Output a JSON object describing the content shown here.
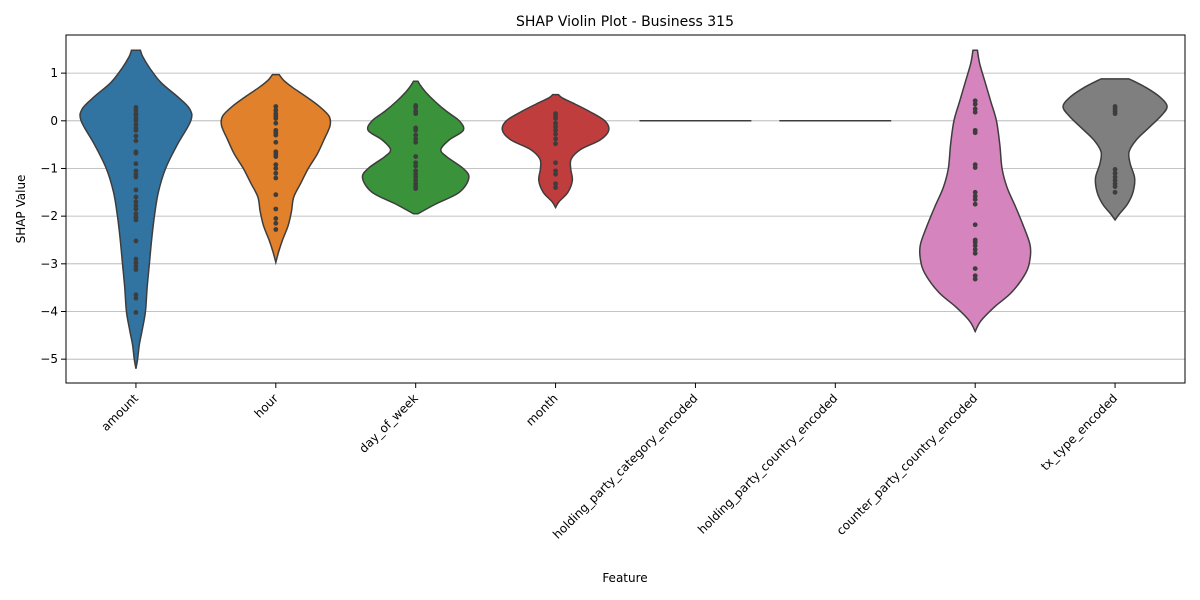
{
  "chart_data": {
    "type": "violin",
    "title": "SHAP Violin Plot - Business 315",
    "xlabel": "Feature",
    "ylabel": "SHAP Value",
    "ylim": [
      -5.5,
      1.8
    ],
    "yticks": [
      1,
      0,
      -1,
      -2,
      -3,
      -4,
      -5
    ],
    "ytick_labels": [
      "1",
      "0",
      "−1",
      "−2",
      "−3",
      "−4",
      "−5"
    ],
    "grid": "y",
    "categories": [
      "amount",
      "hour",
      "day_of_week",
      "month",
      "holding_party_category_encoded",
      "holding_party_country_encoded",
      "counter_party_country_encoded",
      "tx_type_encoded"
    ],
    "series": [
      {
        "category": "amount",
        "color": "#3274a1",
        "min": -5.2,
        "max": 1.48,
        "profile": [
          [
            -5.2,
            0.0
          ],
          [
            -5.0,
            0.03
          ],
          [
            -4.7,
            0.06
          ],
          [
            -4.4,
            0.11
          ],
          [
            -4.0,
            0.17
          ],
          [
            -3.5,
            0.2
          ],
          [
            -3.0,
            0.24
          ],
          [
            -2.5,
            0.28
          ],
          [
            -2.0,
            0.33
          ],
          [
            -1.5,
            0.4
          ],
          [
            -1.0,
            0.53
          ],
          [
            -0.5,
            0.74
          ],
          [
            0.0,
            0.98
          ],
          [
            0.25,
            0.96
          ],
          [
            0.5,
            0.75
          ],
          [
            0.8,
            0.45
          ],
          [
            1.1,
            0.25
          ],
          [
            1.35,
            0.12
          ],
          [
            1.48,
            0.08
          ]
        ],
        "points": [
          0.28,
          0.22,
          0.15,
          0.12,
          0.05,
          0.0,
          -0.08,
          -0.15,
          -0.2,
          -0.32,
          -0.42,
          -0.65,
          -0.68,
          -0.9,
          -1.05,
          -1.12,
          -1.18,
          -1.45,
          -1.6,
          -1.7,
          -1.78,
          -1.85,
          -1.95,
          -2.02,
          -2.08,
          -2.52,
          -2.9,
          -2.98,
          -3.05,
          -3.12,
          -3.65,
          -3.72,
          -4.02
        ]
      },
      {
        "category": "hour",
        "color": "#e1812c",
        "min": -2.97,
        "max": 0.97,
        "profile": [
          [
            -2.97,
            0.0
          ],
          [
            -2.75,
            0.05
          ],
          [
            -2.5,
            0.12
          ],
          [
            -2.2,
            0.22
          ],
          [
            -1.9,
            0.28
          ],
          [
            -1.6,
            0.32
          ],
          [
            -1.3,
            0.45
          ],
          [
            -1.0,
            0.58
          ],
          [
            -0.7,
            0.74
          ],
          [
            -0.4,
            0.86
          ],
          [
            -0.1,
            0.97
          ],
          [
            0.1,
            0.95
          ],
          [
            0.3,
            0.78
          ],
          [
            0.5,
            0.55
          ],
          [
            0.7,
            0.3
          ],
          [
            0.85,
            0.14
          ],
          [
            0.97,
            0.06
          ]
        ],
        "points": [
          0.3,
          0.22,
          0.15,
          0.1,
          0.05,
          -0.05,
          -0.2,
          -0.25,
          -0.3,
          -0.45,
          -0.65,
          -0.7,
          -0.75,
          -0.92,
          -1.0,
          -1.1,
          -1.2,
          -1.55,
          -1.85,
          -2.05,
          -2.15,
          -2.28
        ]
      },
      {
        "category": "day_of_week",
        "color": "#3a923a",
        "min": -1.95,
        "max": 0.83,
        "profile": [
          [
            -1.95,
            0.04
          ],
          [
            -1.75,
            0.35
          ],
          [
            -1.5,
            0.78
          ],
          [
            -1.2,
            0.95
          ],
          [
            -1.0,
            0.85
          ],
          [
            -0.75,
            0.55
          ],
          [
            -0.6,
            0.45
          ],
          [
            -0.4,
            0.6
          ],
          [
            -0.2,
            0.85
          ],
          [
            0.0,
            0.78
          ],
          [
            0.2,
            0.55
          ],
          [
            0.4,
            0.35
          ],
          [
            0.6,
            0.18
          ],
          [
            0.75,
            0.08
          ],
          [
            0.83,
            0.04
          ]
        ],
        "points": [
          0.32,
          0.28,
          0.2,
          0.15,
          -0.15,
          -0.2,
          -0.3,
          -0.38,
          -0.45,
          -0.75,
          -0.88,
          -0.95,
          -1.05,
          -1.12,
          -1.18,
          -1.25,
          -1.32,
          -1.38,
          -1.42
        ]
      },
      {
        "category": "month",
        "color": "#c03d3e",
        "min": -1.82,
        "max": 0.55,
        "profile": [
          [
            -1.82,
            0.0
          ],
          [
            -1.7,
            0.06
          ],
          [
            -1.5,
            0.22
          ],
          [
            -1.25,
            0.3
          ],
          [
            -1.0,
            0.27
          ],
          [
            -0.8,
            0.28
          ],
          [
            -0.6,
            0.45
          ],
          [
            -0.4,
            0.8
          ],
          [
            -0.2,
            0.95
          ],
          [
            0.0,
            0.88
          ],
          [
            0.2,
            0.6
          ],
          [
            0.35,
            0.35
          ],
          [
            0.48,
            0.12
          ],
          [
            0.55,
            0.05
          ]
        ],
        "points": [
          0.15,
          0.1,
          0.05,
          -0.05,
          -0.12,
          -0.2,
          -0.28,
          -0.38,
          -0.48,
          -0.88,
          -1.05,
          -1.12,
          -1.32,
          -1.4
        ]
      },
      {
        "category": "holding_party_category_encoded",
        "color": "#9372b2",
        "flat": true,
        "value": 0
      },
      {
        "category": "holding_party_country_encoded",
        "color": "#845b53",
        "flat": true,
        "value": 0
      },
      {
        "category": "counter_party_country_encoded",
        "color": "#d684bd",
        "min": -4.42,
        "max": 1.48,
        "profile": [
          [
            -4.42,
            0.0
          ],
          [
            -4.2,
            0.1
          ],
          [
            -3.9,
            0.35
          ],
          [
            -3.6,
            0.65
          ],
          [
            -3.2,
            0.9
          ],
          [
            -2.9,
            0.98
          ],
          [
            -2.6,
            0.98
          ],
          [
            -2.2,
            0.86
          ],
          [
            -1.8,
            0.72
          ],
          [
            -1.4,
            0.57
          ],
          [
            -1.0,
            0.48
          ],
          [
            -0.5,
            0.44
          ],
          [
            0.0,
            0.38
          ],
          [
            0.4,
            0.28
          ],
          [
            0.8,
            0.18
          ],
          [
            1.2,
            0.08
          ],
          [
            1.48,
            0.04
          ]
        ],
        "points": [
          0.42,
          0.35,
          0.25,
          0.18,
          -0.2,
          -0.25,
          -0.92,
          -0.98,
          -1.5,
          -1.58,
          -1.65,
          -1.75,
          -2.18,
          -2.5,
          -2.55,
          -2.62,
          -2.7,
          -2.78,
          -3.1,
          -3.25,
          -3.32
        ]
      },
      {
        "category": "tx_type_encoded",
        "color": "#7f7f7f",
        "min": -2.08,
        "max": 0.88,
        "profile": [
          [
            -2.08,
            0.0
          ],
          [
            -1.95,
            0.08
          ],
          [
            -1.75,
            0.22
          ],
          [
            -1.5,
            0.32
          ],
          [
            -1.2,
            0.35
          ],
          [
            -0.9,
            0.27
          ],
          [
            -0.65,
            0.25
          ],
          [
            -0.4,
            0.38
          ],
          [
            -0.15,
            0.6
          ],
          [
            0.1,
            0.82
          ],
          [
            0.3,
            0.93
          ],
          [
            0.5,
            0.8
          ],
          [
            0.7,
            0.55
          ],
          [
            0.88,
            0.25
          ]
        ],
        "points": [
          0.3,
          0.25,
          0.2,
          0.15,
          -1.02,
          -1.1,
          -1.18,
          -1.25,
          -1.32,
          -1.38,
          -1.5
        ]
      }
    ]
  }
}
